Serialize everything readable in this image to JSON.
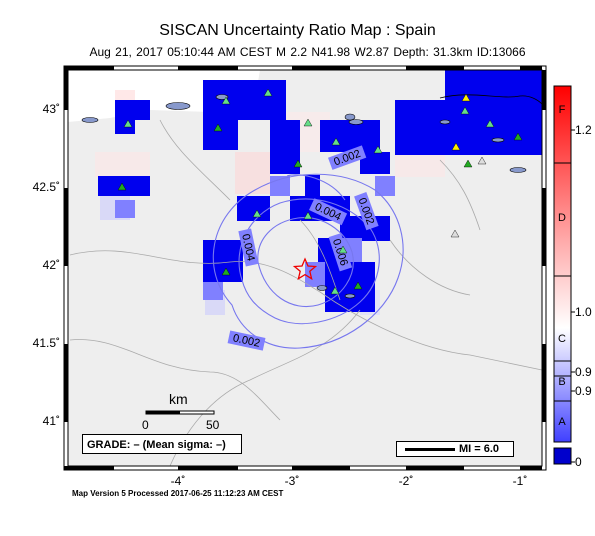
{
  "title": "SISCAN Uncertainty Ratio Map : Spain",
  "subtitle": "Aug 21, 2017 05:10:44 AM CEST   M 2.2   N41.98 W2.87   Depth: 31.3km   ID:13066",
  "footer": "Map Version 5 Processed 2017-06-25 11:12:23 AM CEST",
  "lat_ticks": [
    "43˚",
    "42.5˚",
    "42˚",
    "41.5˚",
    "41˚"
  ],
  "lon_ticks": [
    "-4˚",
    "-3˚",
    "-2˚",
    "-1˚"
  ],
  "contour_labels": [
    "0.002",
    "0.002",
    "0.004",
    "0.004",
    "0.006",
    "0.002"
  ],
  "scale": {
    "title": "km",
    "start": "0",
    "end": "50"
  },
  "grade_box": "GRADE: – (Mean sigma: –)",
  "mi_legend": "MI = 6.0",
  "colorbar": {
    "ticks": [
      "1.2",
      "1.0",
      "0.9",
      "0.9",
      "0"
    ],
    "grades": [
      "F",
      "D",
      "C",
      "B",
      "A"
    ],
    "colors": {
      "top": "#ff0000",
      "mid": "#ffffff",
      "bottom": "#0000cc"
    }
  },
  "epicenter_symbol": "star-icon",
  "station_colors": {
    "green": "#22aa22",
    "yellow": "#ffee00",
    "grey": "#cccccc"
  }
}
